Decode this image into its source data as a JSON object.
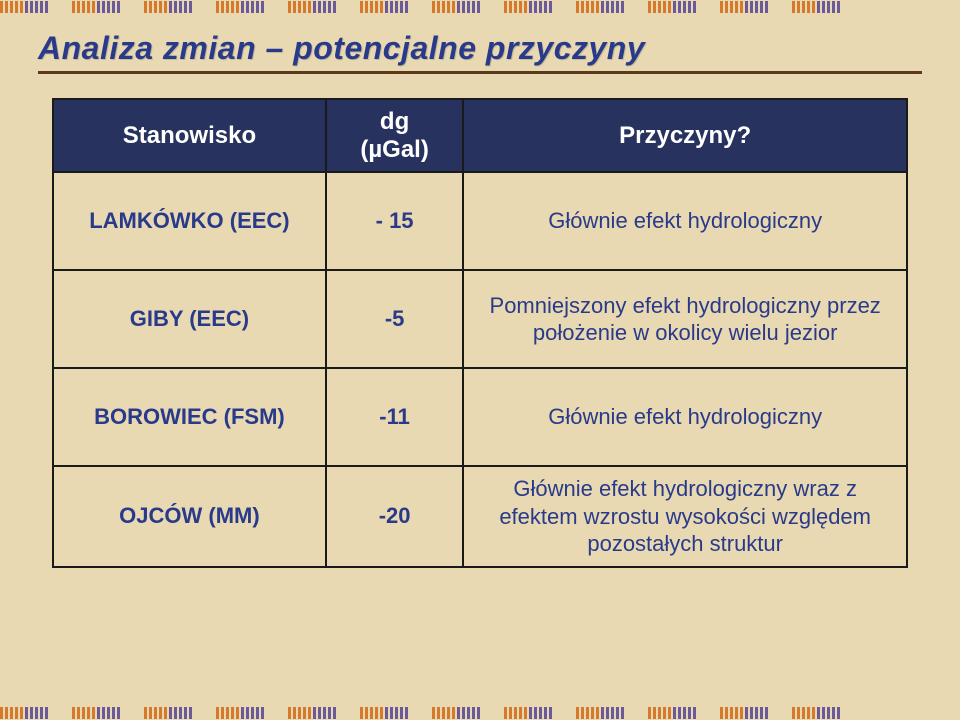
{
  "title": "Analiza zmian – potencjalne przyczyny",
  "table": {
    "headers": {
      "station": "Stanowisko",
      "dg_line1": "dg",
      "dg_line2": "(µGal)",
      "reason": "Przyczyny?"
    },
    "rows": [
      {
        "station": "LAMKÓWKO (EEC)",
        "dg": "- 15",
        "reason": "Głównie efekt hydrologiczny"
      },
      {
        "station": "GIBY (EEC)",
        "dg": "-5",
        "reason": "Pomniejszony efekt hydrologiczny przez położenie w okolicy wielu jezior"
      },
      {
        "station": "BOROWIEC (FSM)",
        "dg": "-11",
        "reason": "Głównie efekt hydrologiczny"
      },
      {
        "station": "OJCÓW (MM)",
        "dg": "-20",
        "reason": "Głównie efekt hydrologiczny wraz z efektem wzrostu wysokości względem pozostałych struktur"
      }
    ]
  },
  "decor": {
    "border_pattern": [
      "orange",
      "orange",
      "orange",
      "orange",
      "orange",
      "purple",
      "purple",
      "purple",
      "purple",
      "purple"
    ],
    "group_repeat": 12
  },
  "colors": {
    "background": "#e8d9b2",
    "title": "#2a3a8a",
    "header_bg": "#27335e",
    "header_text": "#ffffff",
    "cell_text": "#2a3a8a",
    "border": "#1a1a1a",
    "underline": "#5a3a1a",
    "tick_orange": "#d47a2a",
    "tick_purple": "#6a5a9a"
  }
}
